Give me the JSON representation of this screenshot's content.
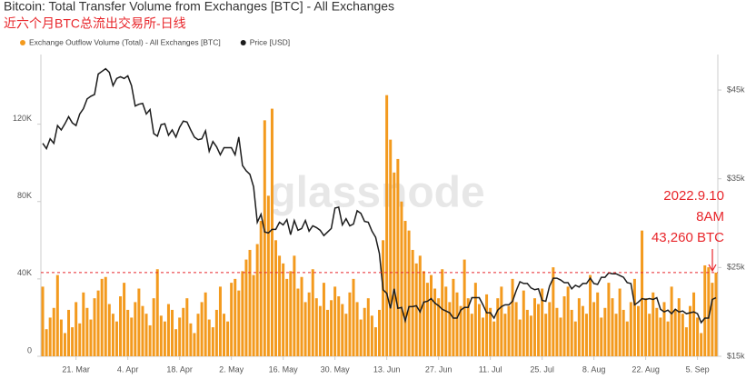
{
  "chart_data": {
    "type": "bar",
    "title": "Bitcoin: Total Transfer Volume from Exchanges [BTC] - All Exchanges",
    "subtitle": "近六个月BTC总流出交易所-日线",
    "watermark": "glassnode",
    "categories": [
      null,
      null,
      null,
      null,
      null,
      null,
      null,
      null,
      null,
      "21. Mar",
      null,
      null,
      null,
      null,
      null,
      null,
      null,
      null,
      null,
      null,
      null,
      null,
      null,
      "4. Apr",
      null,
      null,
      null,
      null,
      null,
      null,
      null,
      null,
      null,
      null,
      null,
      null,
      null,
      "18. Apr",
      null,
      null,
      null,
      null,
      null,
      null,
      null,
      null,
      null,
      null,
      null,
      null,
      null,
      "2. May",
      null,
      null,
      null,
      null,
      null,
      null,
      null,
      null,
      null,
      null,
      null,
      null,
      null,
      "16. May",
      null,
      null,
      null,
      null,
      null,
      null,
      null,
      null,
      null,
      null,
      null,
      null,
      null,
      "30. May",
      null,
      null,
      null,
      null,
      null,
      null,
      null,
      null,
      null,
      null,
      null,
      null,
      null,
      "13. Jun",
      null,
      null,
      null,
      null,
      null,
      null,
      null,
      null,
      null,
      null,
      null,
      null,
      null,
      "27. Jun",
      null,
      null,
      null,
      null,
      null,
      null,
      null,
      null,
      null,
      null,
      null,
      null,
      null,
      "11. Jul",
      null,
      null,
      null,
      null,
      null,
      null,
      null,
      null,
      null,
      null,
      null,
      null,
      null,
      "25. Jul",
      null,
      null,
      null,
      null,
      null,
      null,
      null,
      null,
      null,
      null,
      null,
      null,
      null,
      "8. Aug",
      null,
      null,
      null,
      null,
      null,
      null,
      null,
      null,
      null,
      null,
      null,
      null,
      null,
      "22. Aug",
      null,
      null,
      null,
      null,
      null,
      null,
      null,
      null,
      null,
      null,
      null,
      null,
      null,
      "5. Sep",
      null,
      null,
      null,
      null,
      null
    ],
    "series": [
      {
        "name": "Exchange Outflow Volume (Total) - All Exchanges [BTC]",
        "type": "bar",
        "color": "#f39a1e",
        "values": [
          36000,
          14000,
          20000,
          25000,
          42000,
          19000,
          12000,
          24000,
          15000,
          28000,
          17000,
          33000,
          25000,
          19000,
          30000,
          34000,
          40000,
          41000,
          27000,
          22000,
          18000,
          31000,
          38000,
          24000,
          20000,
          28000,
          35000,
          26000,
          22000,
          16000,
          30000,
          45000,
          21000,
          18000,
          27000,
          24000,
          14000,
          20000,
          25000,
          30000,
          17000,
          12000,
          22000,
          28000,
          33000,
          19000,
          15000,
          24000,
          36000,
          22000,
          18000,
          38000,
          40000,
          34000,
          44000,
          50000,
          55000,
          42000,
          58000,
          70000,
          122000,
          83000,
          128000,
          60000,
          52000,
          48000,
          40000,
          44000,
          52000,
          35000,
          41000,
          28000,
          33000,
          45000,
          30000,
          26000,
          38000,
          24000,
          29000,
          36000,
          31000,
          27000,
          22000,
          33000,
          40000,
          28000,
          19000,
          25000,
          30000,
          21000,
          15000,
          24000,
          60000,
          135000,
          112000,
          95000,
          102000,
          80000,
          70000,
          65000,
          55000,
          48000,
          52000,
          44000,
          38000,
          42000,
          35000,
          30000,
          45000,
          36000,
          28000,
          40000,
          33000,
          26000,
          50000,
          30000,
          22000,
          38000,
          27000,
          20000,
          32000,
          25000,
          18000,
          30000,
          36000,
          22000,
          26000,
          40000,
          28000,
          19000,
          34000,
          24000,
          21000,
          30000,
          27000,
          35000,
          22000,
          28000,
          46000,
          25000,
          20000,
          31000,
          36000,
          24000,
          18000,
          30000,
          26000,
          22000,
          42000,
          28000,
          33000,
          20000,
          25000,
          38000,
          30000,
          22000,
          35000,
          24000,
          18000,
          28000,
          40000,
          26000,
          65000,
          30000,
          22000,
          33000,
          25000,
          20000,
          28000,
          18000,
          36000,
          24000,
          30000,
          22000,
          15000,
          26000,
          33000,
          20000,
          12000,
          47000,
          46000,
          38000,
          43260
        ]
      },
      {
        "name": "Price [USD]",
        "type": "line",
        "axis": "y2",
        "color": "#1c1c1c",
        "values": [
          39000,
          38400,
          39500,
          39000,
          41000,
          40500,
          41200,
          42000,
          41300,
          41000,
          42300,
          42900,
          44000,
          44300,
          44500,
          46800,
          47100,
          47400,
          47000,
          45500,
          46300,
          46500,
          46300,
          46600,
          45500,
          43200,
          43400,
          43500,
          42300,
          42800,
          40100,
          39800,
          41100,
          41200,
          39900,
          40500,
          39700,
          40800,
          41500,
          41400,
          40500,
          39700,
          39400,
          39500,
          40400,
          38100,
          39200,
          38600,
          37700,
          38500,
          38500,
          38500,
          37700,
          39700,
          36500,
          35900,
          35500,
          34100,
          30100,
          31000,
          29000,
          28900,
          29300,
          29300,
          30100,
          29800,
          30400,
          28700,
          30300,
          29200,
          29400,
          30300,
          29100,
          29700,
          29500,
          29200,
          28600,
          29000,
          29400,
          31700,
          31800,
          29800,
          30500,
          29700,
          29900,
          31400,
          31100,
          30200,
          30100,
          29100,
          28400,
          26600,
          22500,
          22100,
          20400,
          22600,
          20400,
          20500,
          19000,
          20600,
          20600,
          20700,
          20000,
          21100,
          21200,
          21500,
          21000,
          20700,
          20300,
          20100,
          19900,
          19300,
          19300,
          20200,
          20500,
          20500,
          21600,
          21600,
          21600,
          20800,
          19900,
          19900,
          19300,
          20200,
          20600,
          20800,
          20800,
          21200,
          22400,
          23400,
          23200,
          23200,
          22700,
          22500,
          22600,
          21300,
          21200,
          22900,
          23800,
          23800,
          23600,
          23300,
          23300,
          22600,
          23000,
          22800,
          23200,
          23200,
          23800,
          23200,
          23100,
          23900,
          23900,
          24400,
          24300,
          24300,
          24100,
          23900,
          23300,
          23200,
          20800,
          21100,
          21500,
          21400,
          21500,
          21400,
          21600,
          20300,
          20000,
          20200,
          19800,
          20300,
          20000,
          20100,
          19800,
          19900,
          20000,
          19800,
          18800,
          19300,
          19300,
          21400,
          21600
        ]
      }
    ],
    "ylim": [
      0,
      156000
    ],
    "yticks": [
      0,
      {
        "value": 40000,
        "label": "40K"
      },
      {
        "value": 80000,
        "label": "80K"
      },
      {
        "value": 120000,
        "label": "120K"
      }
    ],
    "y2lim": [
      15000,
      49000
    ],
    "y2ticks": [
      {
        "value": 15000,
        "label": "$15k"
      },
      {
        "value": 25000,
        "label": "$25k"
      },
      {
        "value": 35000,
        "label": "$35k"
      },
      {
        "value": 45000,
        "label": "$45k"
      }
    ],
    "grid": false,
    "legend": "top-left",
    "annotation": {
      "lines": [
        "2022.9.10",
        "8AM",
        "43,260 BTC"
      ],
      "value": 43260,
      "color": "#e8262b"
    }
  }
}
